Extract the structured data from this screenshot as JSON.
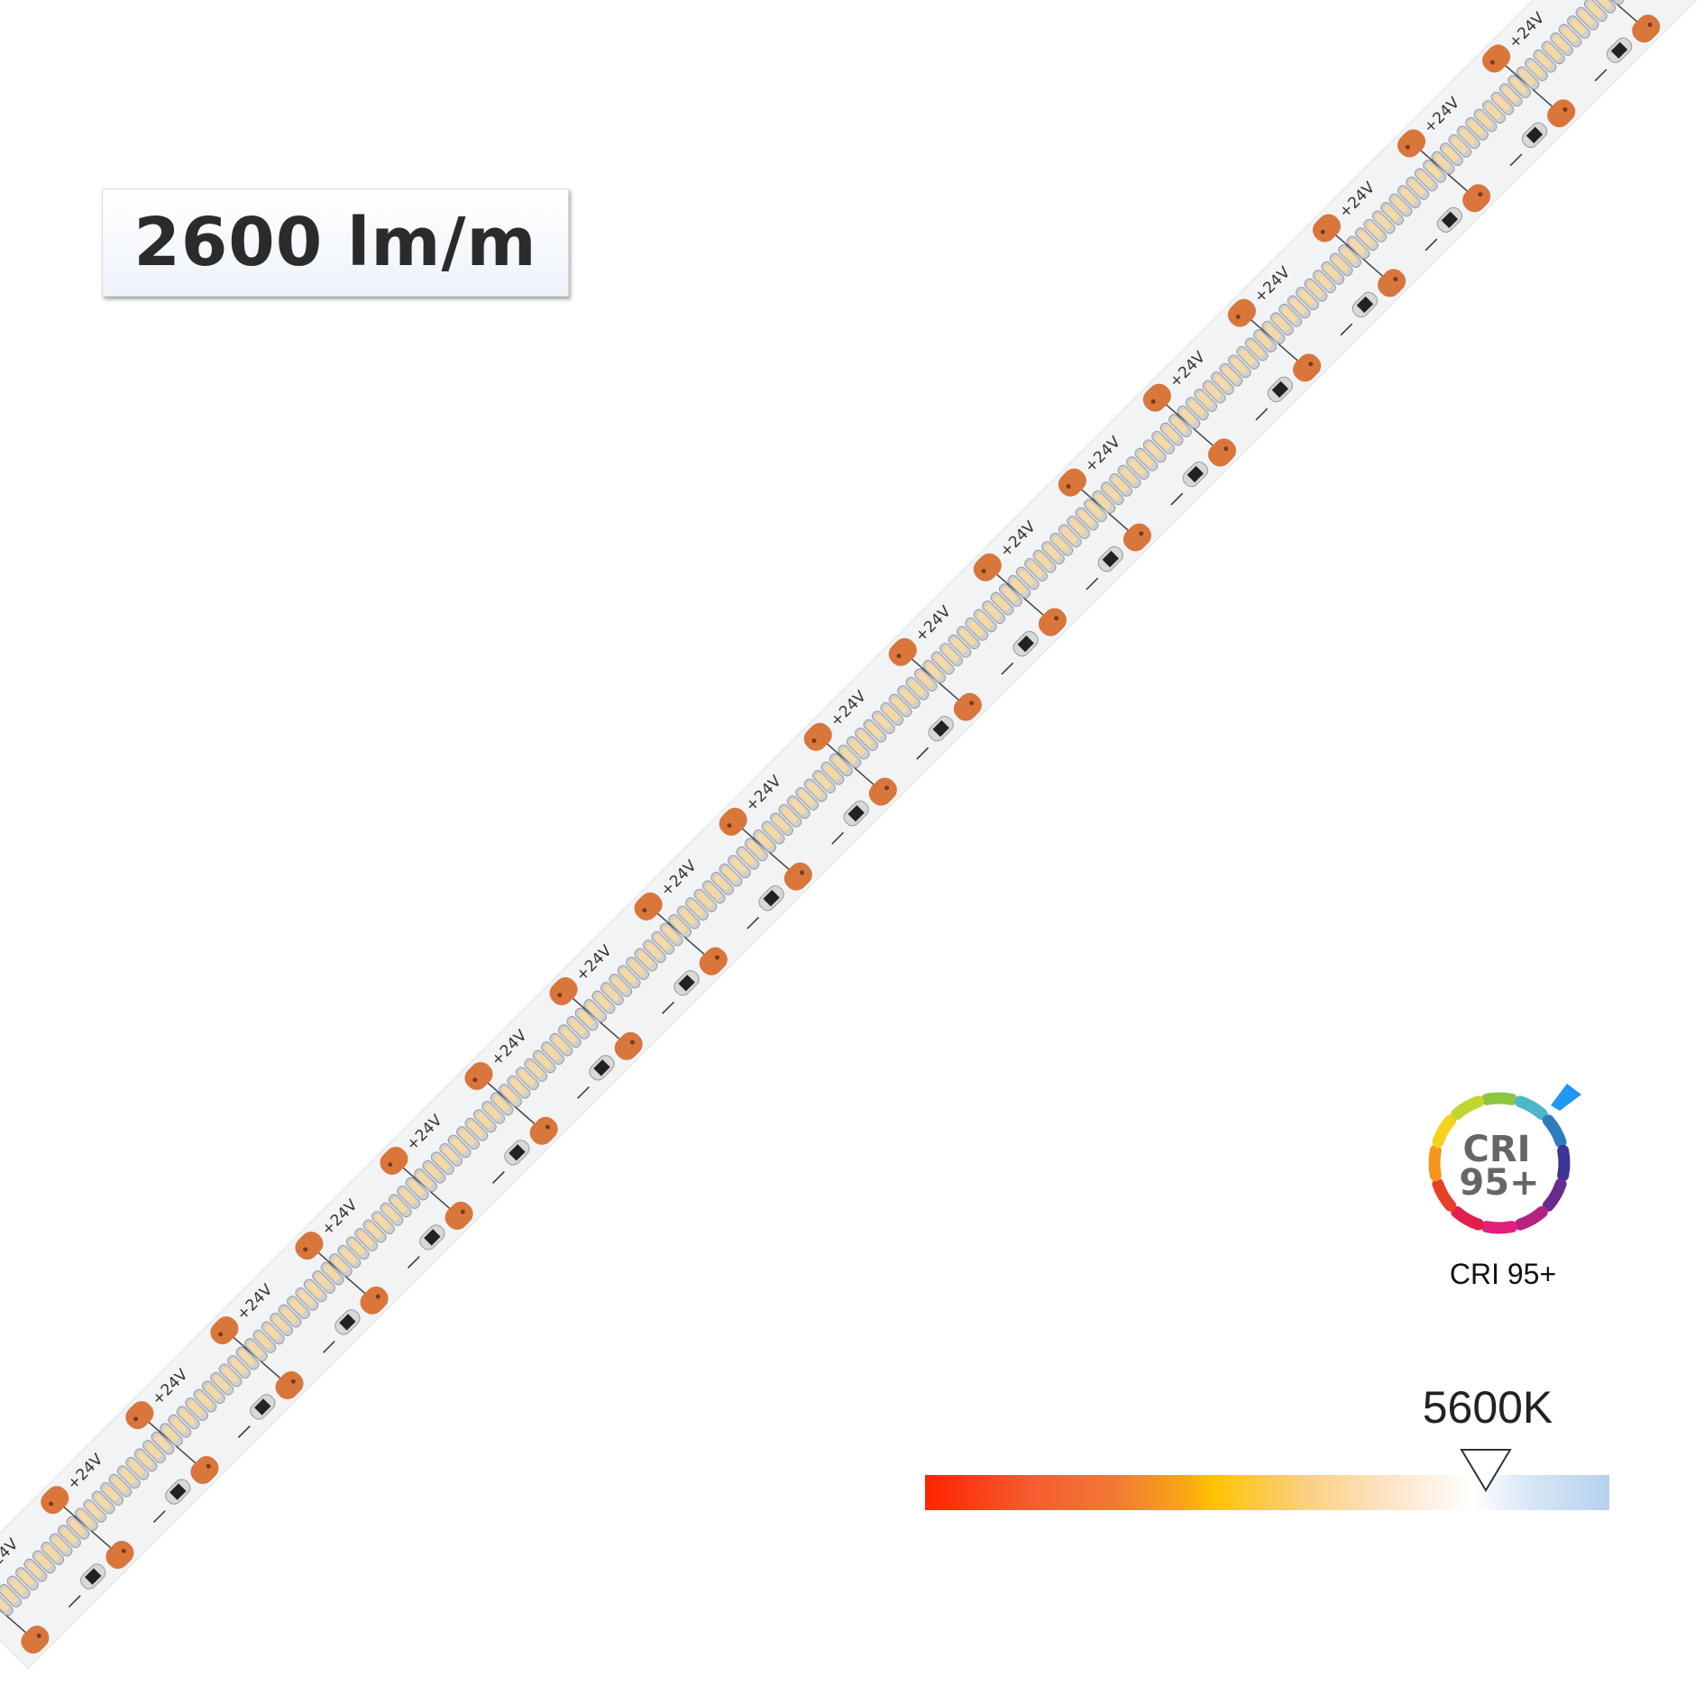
{
  "lumen": {
    "label": "2600 lm/m"
  },
  "strip": {
    "voltage_marking": "+24V",
    "pcb_color": "#f1f3f5",
    "led_color": "#f7d8a3",
    "pad_color": "#d9763c"
  },
  "cri": {
    "icon_text_line1": "CRI",
    "icon_text_line2": "95+",
    "caption": "CRI 95+",
    "ring_colors": [
      "#8cc63f",
      "#4fb6c9",
      "#2f7bc0",
      "#3a3596",
      "#6a2a8d",
      "#b5227f",
      "#e0207a",
      "#e21f4a",
      "#e8412a",
      "#f7941d",
      "#f5d21b",
      "#c2d530"
    ],
    "pointer_color": "#2196f3"
  },
  "cct": {
    "label": "5600K",
    "position_percent": 81
  }
}
